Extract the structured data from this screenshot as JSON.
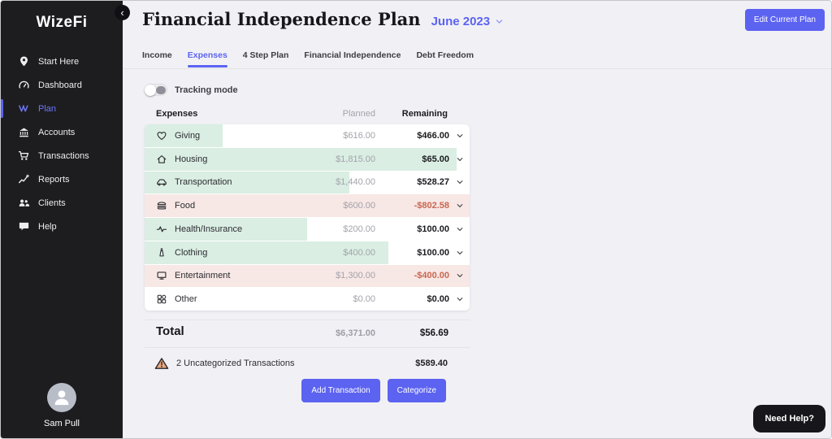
{
  "colors": {
    "accent": "#5c63f1",
    "accent_light": "#6d76f7",
    "sidebar_bg": "#1d1d20",
    "main_bg": "#f1f1f5",
    "fill_green": "#daeee3",
    "fill_pink": "#f7e7e5",
    "negative": "#c9674f"
  },
  "sidebar": {
    "logo": "WizeFi",
    "collapse_icon": "‹",
    "items": [
      {
        "label": "Start Here",
        "icon": "location-pin",
        "active": false
      },
      {
        "label": "Dashboard",
        "icon": "gauge",
        "active": false
      },
      {
        "label": "Plan",
        "icon": "wizefi-w",
        "active": true
      },
      {
        "label": "Accounts",
        "icon": "bank",
        "active": false
      },
      {
        "label": "Transactions",
        "icon": "cart",
        "active": false
      },
      {
        "label": "Reports",
        "icon": "chart",
        "active": false
      },
      {
        "label": "Clients",
        "icon": "people",
        "active": false
      },
      {
        "label": "Help",
        "icon": "chat",
        "active": false
      }
    ],
    "user": {
      "name": "Sam Pull"
    }
  },
  "header": {
    "title": "Financial Independence Plan",
    "period": "June 2023",
    "edit_button": "Edit Current Plan"
  },
  "tabs": [
    {
      "label": "Income",
      "active": false
    },
    {
      "label": "Expenses",
      "active": true
    },
    {
      "label": "4 Step Plan",
      "active": false
    },
    {
      "label": "Financial Independence",
      "active": false
    },
    {
      "label": "Debt Freedom",
      "active": false
    }
  ],
  "content": {
    "tracking_toggle": {
      "label": "Tracking mode",
      "state": "off"
    },
    "table": {
      "columns": {
        "category": "Expenses",
        "planned": "Planned",
        "remaining": "Remaining"
      },
      "rows": [
        {
          "category": "Giving",
          "icon": "heart",
          "planned": "$616.00",
          "remaining": "$466.00",
          "fill_percent": 24,
          "status": "under"
        },
        {
          "category": "Housing",
          "icon": "home",
          "planned": "$1,815.00",
          "remaining": "$65.00",
          "fill_percent": 96,
          "status": "under"
        },
        {
          "category": "Transportation",
          "icon": "car",
          "planned": "$1,440.00",
          "remaining": "$528.27",
          "fill_percent": 63,
          "status": "under"
        },
        {
          "category": "Food",
          "icon": "burger",
          "planned": "$600.00",
          "remaining": "-$802.58",
          "fill_percent": 100,
          "status": "over"
        },
        {
          "category": "Health/Insurance",
          "icon": "pulse",
          "planned": "$200.00",
          "remaining": "$100.00",
          "fill_percent": 50,
          "status": "under"
        },
        {
          "category": "Clothing",
          "icon": "clothing",
          "planned": "$400.00",
          "remaining": "$100.00",
          "fill_percent": 75,
          "status": "under"
        },
        {
          "category": "Entertainment",
          "icon": "monitor",
          "planned": "$1,300.00",
          "remaining": "-$400.00",
          "fill_percent": 100,
          "status": "over"
        },
        {
          "category": "Other",
          "icon": "grid",
          "planned": "$0.00",
          "remaining": "$0.00",
          "fill_percent": 0,
          "status": "under"
        }
      ],
      "total": {
        "label": "Total",
        "planned": "$6,371.00",
        "remaining": "$56.69"
      }
    },
    "uncategorized": {
      "label": "2 Uncategorized Transactions",
      "amount": "$589.40"
    },
    "actions": {
      "add_transaction": "Add Transaction",
      "categorize": "Categorize"
    }
  },
  "help_button": "Need Help?"
}
